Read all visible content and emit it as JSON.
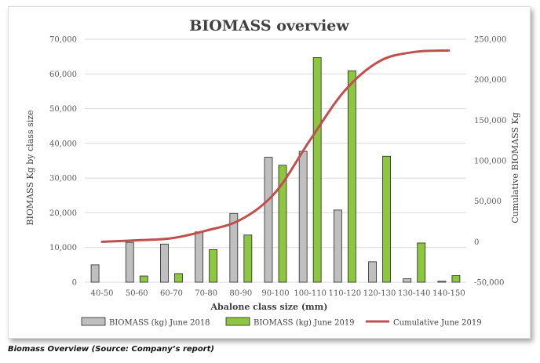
{
  "chart_data": {
    "type": "bar",
    "title": "BIOMASS overview",
    "xlabel": "Abalone class size (mm)",
    "ylabel": "BIOMASS Kg by class size",
    "y2label": "Cumulative BIOMASS Kg",
    "categories": [
      "40-50",
      "50-60",
      "60-70",
      "70-80",
      "80-90",
      "90-100",
      "100-110",
      "110-120",
      "120-130",
      "130-140",
      "140-150"
    ],
    "ylim": [
      0,
      70000
    ],
    "y2lim": [
      -50000,
      250000
    ],
    "yticks": [
      0,
      10000,
      20000,
      30000,
      40000,
      50000,
      60000,
      70000
    ],
    "yticks_labels": [
      "0",
      "10,000",
      "20,000",
      "30,000",
      "40,000",
      "50,000",
      "60,000",
      "70,000"
    ],
    "y2ticks": [
      -50000,
      0,
      50000,
      100000,
      150000,
      200000,
      250000
    ],
    "y2ticks_labels": [
      "-50,000",
      "0",
      "50,000",
      "100,000",
      "150,000",
      "200,000",
      "250,000"
    ],
    "grid": true,
    "legend_position": "bottom",
    "series": [
      {
        "name": "BIOMASS (kg) June 2018",
        "type": "bar",
        "axis": "left",
        "color": "#bfbfbf",
        "values": [
          5000,
          11500,
          11000,
          14500,
          19800,
          36000,
          37700,
          20800,
          5900,
          1000,
          300
        ]
      },
      {
        "name": "BIOMASS (kg) June 2019",
        "type": "bar",
        "axis": "left",
        "color": "#8dc63f",
        "values": [
          0,
          1800,
          2500,
          9400,
          13600,
          33700,
          64700,
          60900,
          36300,
          11300,
          1900
        ]
      },
      {
        "name": "Cumulative June 2019",
        "type": "line",
        "axis": "right",
        "color": "#c0504d",
        "values": [
          0,
          1800,
          4300,
          13700,
          27300,
          61000,
          125700,
          186600,
          222900,
          234200,
          236100
        ]
      }
    ]
  },
  "caption": "Biomass Overview (Source: Company’s report)"
}
